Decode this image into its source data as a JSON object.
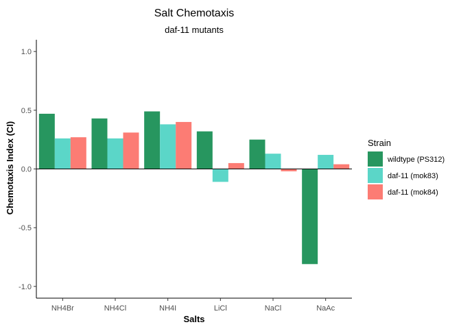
{
  "chart_data": {
    "type": "bar",
    "title": "Salt Chemotaxis",
    "subtitle": "daf-11 mutants",
    "xlabel": "Salts",
    "ylabel": "Chemotaxis Index (CI)",
    "ylim": [
      -1.1,
      1.1
    ],
    "yticks": [
      -1.0,
      -0.5,
      0.0,
      0.5,
      1.0
    ],
    "ytick_labels": [
      "-1.0",
      "-0.5",
      "0.0",
      "0.5",
      "1.0"
    ],
    "grid": false,
    "legend_position": "right",
    "legend_title": "Strain",
    "categories": [
      "NH4Br",
      "NH4Cl",
      "NH4I",
      "LiCl",
      "NaCl",
      "NaAc"
    ],
    "series": [
      {
        "name": "wildtype (PS312)",
        "color": "#27965f",
        "values": [
          0.47,
          0.43,
          0.49,
          0.32,
          0.25,
          -0.81
        ]
      },
      {
        "name": "daf-11 (mok83)",
        "color": "#5bd6c8",
        "values": [
          0.26,
          0.26,
          0.38,
          -0.11,
          0.13,
          0.12
        ]
      },
      {
        "name": "daf-11 (mok84)",
        "color": "#fc7c74",
        "values": [
          0.27,
          0.31,
          0.4,
          0.05,
          -0.02,
          0.04
        ]
      }
    ]
  }
}
